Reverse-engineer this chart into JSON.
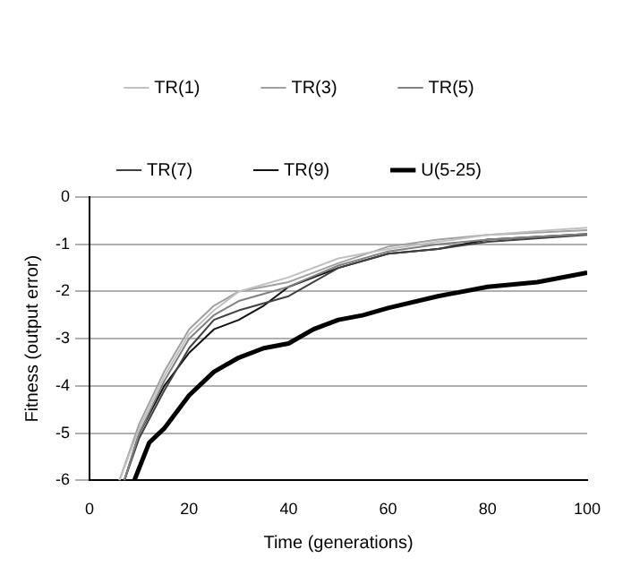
{
  "chart_data": {
    "type": "line",
    "xlabel": "Time (generations)",
    "ylabel": "Fitness (output error)",
    "xlim": [
      0,
      100
    ],
    "xticks": [
      0,
      20,
      40,
      60,
      80,
      100
    ],
    "ylim": [
      -6,
      0
    ],
    "yticks": [
      -6,
      -5,
      -4,
      -3,
      -2,
      -1,
      0
    ],
    "grid": "y",
    "legend": "top",
    "marker": "none",
    "line_style": "solid",
    "series": [
      {
        "name": "TR(1)",
        "color": "#c0c0c0",
        "x": [
          6,
          10,
          15,
          20,
          25,
          30,
          40,
          50,
          60,
          70,
          80,
          90,
          100
        ],
        "values": [
          -6,
          -4.9,
          -3.8,
          -2.9,
          -2.4,
          -2.0,
          -1.7,
          -1.3,
          -1.1,
          -0.95,
          -0.8,
          -0.72,
          -0.65
        ]
      },
      {
        "name": "TR(3)",
        "color": "#a0a0a0",
        "x": [
          6,
          10,
          15,
          20,
          25,
          30,
          40,
          50,
          60,
          70,
          80,
          100
        ],
        "values": [
          -6,
          -4.8,
          -3.7,
          -2.8,
          -2.3,
          -2.0,
          -1.8,
          -1.4,
          -1.05,
          -0.9,
          -0.8,
          -0.7
        ]
      },
      {
        "name": "TR(5)",
        "color": "#808080",
        "x": [
          7,
          10,
          15,
          20,
          25,
          30,
          40,
          50,
          60,
          70,
          80,
          100
        ],
        "values": [
          -6,
          -5.0,
          -3.9,
          -3.0,
          -2.5,
          -2.2,
          -1.9,
          -1.45,
          -1.15,
          -1.0,
          -0.9,
          -0.78
        ]
      },
      {
        "name": "TR(7)",
        "color": "#404040",
        "x": [
          7,
          10,
          15,
          20,
          25,
          30,
          40,
          50,
          60,
          70,
          80,
          100
        ],
        "values": [
          -6,
          -5.1,
          -4.1,
          -3.2,
          -2.6,
          -2.4,
          -2.1,
          -1.5,
          -1.2,
          -1.1,
          -0.95,
          -0.8
        ]
      },
      {
        "name": "TR(9)",
        "color": "#101010",
        "x": [
          7,
          10,
          15,
          20,
          25,
          30,
          35,
          40,
          50,
          60,
          70,
          80,
          100
        ],
        "values": [
          -6,
          -5.0,
          -4.0,
          -3.3,
          -2.8,
          -2.6,
          -2.3,
          -1.9,
          -1.5,
          -1.2,
          -1.1,
          -0.9,
          -0.78
        ]
      },
      {
        "name": "U(5-25)",
        "color": "#000000",
        "x": [
          9,
          12,
          15,
          20,
          25,
          30,
          35,
          40,
          45,
          50,
          55,
          60,
          70,
          80,
          90,
          100
        ],
        "values": [
          -6,
          -5.2,
          -4.9,
          -4.2,
          -3.7,
          -3.4,
          -3.2,
          -3.1,
          -2.8,
          -2.6,
          -2.5,
          -2.35,
          -2.1,
          -1.9,
          -1.8,
          -1.6
        ]
      }
    ]
  }
}
